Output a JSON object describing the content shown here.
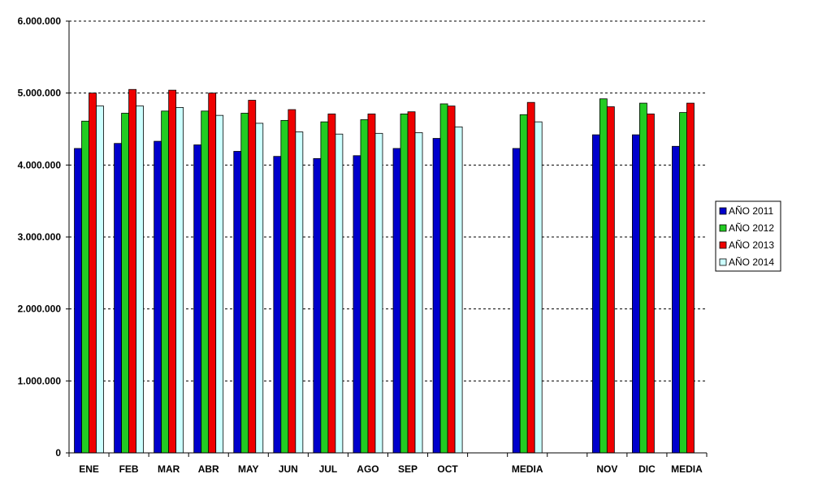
{
  "chart_data": {
    "type": "bar",
    "categories": [
      "ENE",
      "FEB",
      "MAR",
      "ABR",
      "MAY",
      "JUN",
      "JUL",
      "AGO",
      "SEP",
      "OCT",
      "",
      "MEDIA",
      "",
      "NOV",
      "DIC",
      "MEDIA"
    ],
    "series": [
      {
        "name": "AÑO 2011",
        "color": "#0000cc",
        "values": [
          4230000,
          4300000,
          4330000,
          4280000,
          4190000,
          4120000,
          4090000,
          4130000,
          4230000,
          4370000,
          null,
          4230000,
          null,
          4420000,
          4420000,
          4260000
        ]
      },
      {
        "name": "AÑO 2012",
        "color": "#22cc22",
        "values": [
          4610000,
          4720000,
          4750000,
          4750000,
          4720000,
          4620000,
          4600000,
          4630000,
          4710000,
          4850000,
          null,
          4700000,
          null,
          4920000,
          4860000,
          4730000
        ]
      },
      {
        "name": "AÑO 2013",
        "color": "#ee0000",
        "values": [
          5000000,
          5050000,
          5040000,
          5000000,
          4900000,
          4770000,
          4710000,
          4710000,
          4740000,
          4820000,
          null,
          4870000,
          null,
          4810000,
          4710000,
          4860000
        ]
      },
      {
        "name": "AÑO 2014",
        "color": "#ccffff",
        "values": [
          4820000,
          4820000,
          4800000,
          4690000,
          4580000,
          4460000,
          4430000,
          4440000,
          4450000,
          4530000,
          null,
          4600000,
          null,
          null,
          null,
          null
        ]
      }
    ],
    "y_ticks": [
      "0",
      "1.000.000",
      "2.000.000",
      "3.000.000",
      "4.000.000",
      "5.000.000",
      "6.000.000"
    ],
    "ylim": [
      0,
      6000000
    ],
    "y_tick_step": 1000000,
    "grid": true,
    "legend_position": "right",
    "title": "",
    "xlabel": "",
    "ylabel": ""
  }
}
